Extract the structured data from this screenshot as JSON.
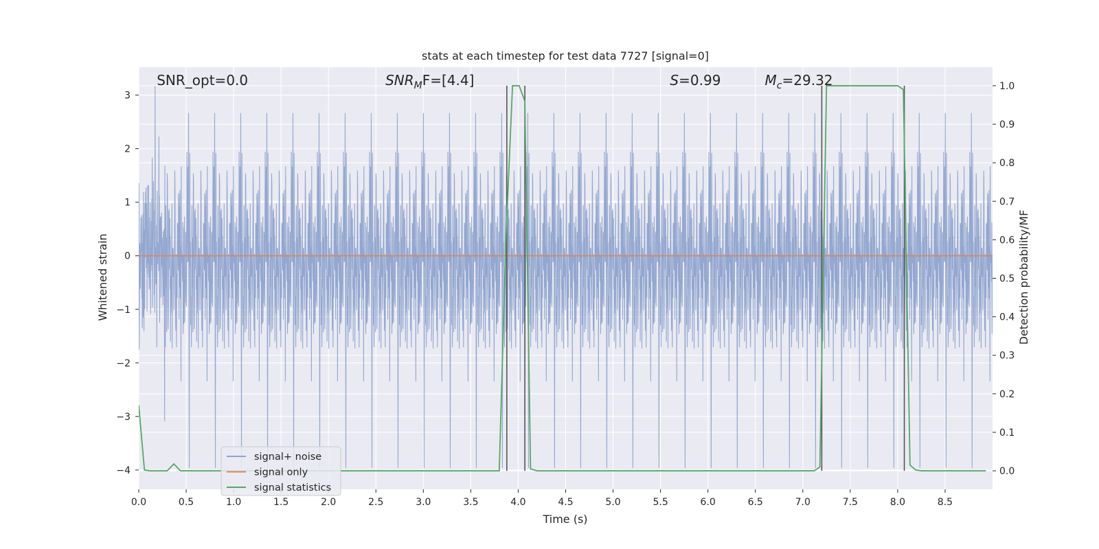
{
  "chart_data": {
    "type": "line",
    "title": "stats at each timestep for test data 7727 [signal=0]",
    "xlabel": "Time (s)",
    "ylabel": "Whitened strain",
    "y2label": "Detection probability/MF",
    "xlim": [
      0,
      9.0
    ],
    "ylim": [
      -4.36,
      3.52
    ],
    "y2lim": [
      -0.048,
      1.048
    ],
    "xticks": [
      0.0,
      0.5,
      1.0,
      1.5,
      2.0,
      2.5,
      3.0,
      3.5,
      4.0,
      4.5,
      5.0,
      5.5,
      6.0,
      6.5,
      7.0,
      7.5,
      8.0,
      8.5
    ],
    "xtick_labels": [
      "0.0",
      "0.5",
      "1.0",
      "1.5",
      "2.0",
      "2.5",
      "3.0",
      "3.5",
      "4.0",
      "4.5",
      "5.0",
      "5.5",
      "6.0",
      "6.5",
      "7.0",
      "7.5",
      "8.0",
      "8.5"
    ],
    "yticks": [
      -4,
      -3,
      -2,
      -1,
      0,
      1,
      2,
      3
    ],
    "ytick_labels": [
      "−4",
      "−3",
      "−2",
      "−1",
      "0",
      "1",
      "2",
      "3"
    ],
    "y2ticks": [
      0.0,
      0.1,
      0.2,
      0.3,
      0.4,
      0.5,
      0.6,
      0.7,
      0.8,
      0.9,
      1.0
    ],
    "y2tick_labels": [
      "0.0",
      "0.1",
      "0.2",
      "0.3",
      "0.4",
      "0.5",
      "0.6",
      "0.7",
      "0.8",
      "0.9",
      "1.0"
    ],
    "grid": true,
    "legend_position": "lower-left",
    "annotations": [
      {
        "text": "SNR_opt=0.0",
        "x": 0.19
      },
      {
        "text": "SNR",
        "sub": "M",
        "rest": "F=[4.4]",
        "x": 2.6
      },
      {
        "text": "S",
        "rest": "=0.99",
        "x": 5.6
      },
      {
        "text": "M",
        "sub": "c",
        "rest": "=29.32",
        "x": 6.6
      }
    ],
    "series": [
      {
        "name": "signal+ noise",
        "color": "#8ea3cd",
        "axis": "left",
        "style": "noise",
        "n": 3600,
        "sigma": 1.0,
        "amplitude_range": [
          -4.0,
          3.3
        ]
      },
      {
        "name": "signal only",
        "color": "#dd8452",
        "axis": "left",
        "x": [
          0.0,
          9.0
        ],
        "y": [
          0.0,
          0.0
        ]
      },
      {
        "name": "signal statistics",
        "color": "#55a868",
        "axis": "right",
        "x": [
          0.0,
          0.06,
          0.12,
          0.3,
          0.37,
          0.44,
          0.5,
          3.8,
          3.87,
          3.94,
          4.01,
          4.07,
          4.13,
          4.2,
          7.12,
          7.18,
          7.25,
          8.0,
          8.06,
          8.13,
          8.19,
          8.25,
          8.93
        ],
        "y": [
          0.17,
          0.002,
          0.0,
          0.0,
          0.018,
          0.0,
          0.0,
          0.0,
          0.6,
          1.0,
          1.0,
          0.96,
          0.005,
          0.0,
          0.0,
          0.01,
          1.0,
          1.0,
          0.99,
          0.015,
          0.002,
          0.0,
          0.0
        ]
      }
    ],
    "vlines": {
      "color": "#555555",
      "x": [
        3.88,
        4.07,
        7.2,
        8.07
      ],
      "y_range": [
        0.0,
        1.0
      ]
    }
  }
}
